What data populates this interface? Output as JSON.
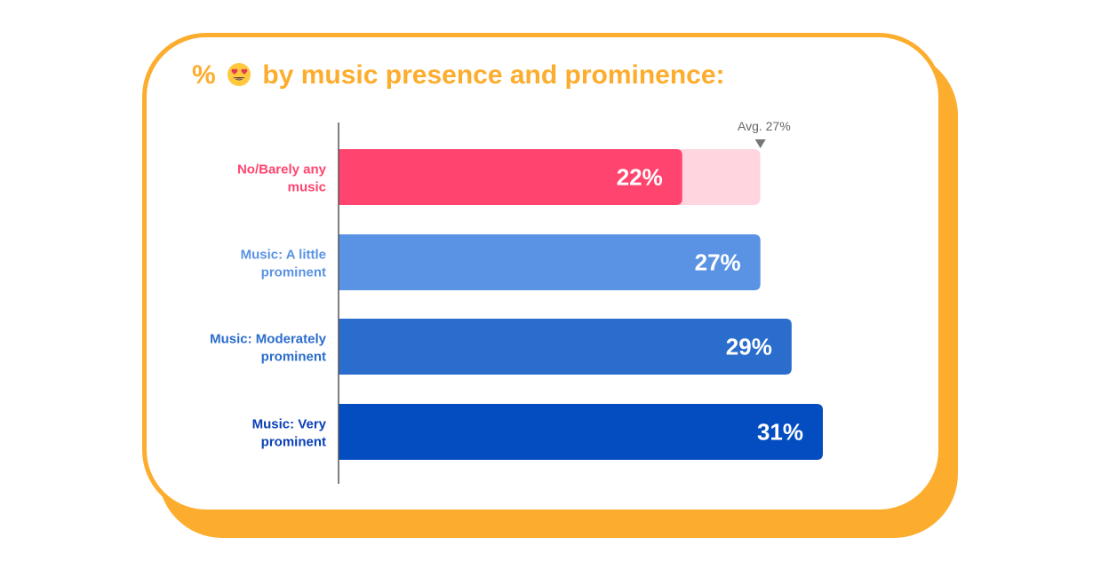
{
  "title": {
    "prefix": "%",
    "emoji": "heart-eyes-emoji",
    "text": "by music presence and prominence:"
  },
  "colors": {
    "accent": "#FDAD2E",
    "axis": "#555555",
    "avg_marker": "#777777"
  },
  "chart_data": {
    "type": "bar",
    "orientation": "horizontal",
    "title": "% 😍 by music presence and prominence:",
    "categories": [
      "No/Barely any music",
      "Music: A little prominent",
      "Music: Moderately prominent",
      "Music: Very prominent"
    ],
    "label_lines": [
      [
        "No/Barely any",
        "music"
      ],
      [
        "Music: A little",
        "prominent"
      ],
      [
        "Music: Moderately",
        "prominent"
      ],
      [
        "Music: Very",
        "prominent"
      ]
    ],
    "values": [
      22,
      27,
      29,
      31
    ],
    "value_labels": [
      "22%",
      "27%",
      "29%",
      "31%"
    ],
    "bar_colors": [
      "#FF456F",
      "#5A93E4",
      "#2A6DCC",
      "#034DC1"
    ],
    "label_colors": [
      "#FF456F",
      "#5A93E4",
      "#2A6DCC",
      "#0A3FB8"
    ],
    "avg_bg_colors": [
      "#FFD6DF",
      "#C5DCF7",
      null,
      null
    ],
    "average": 27,
    "average_label": "Avg. 27%",
    "xlim": [
      0,
      33
    ],
    "grid": false,
    "legend": "none"
  }
}
